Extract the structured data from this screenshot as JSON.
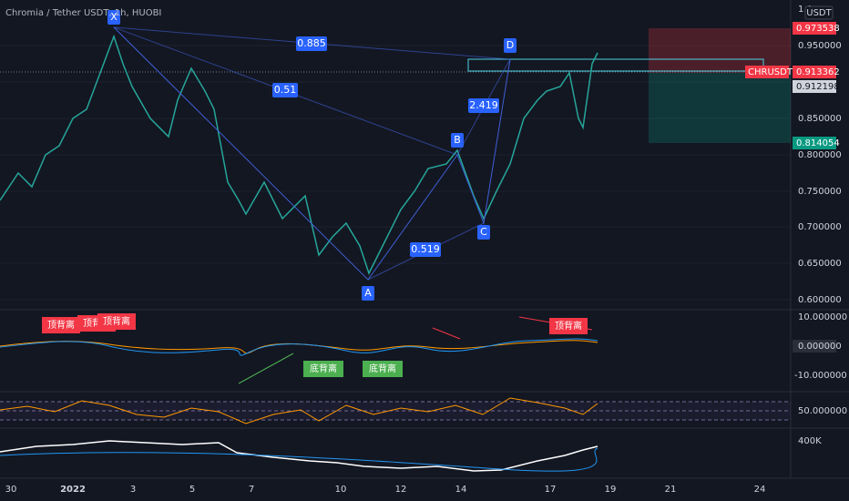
{
  "header": {
    "title": "Chromia / Tether USDT, 1h, HUOBI"
  },
  "price_axis": {
    "currency": "USDT",
    "top_label": "1.0",
    "ticks": [
      "0.950000",
      "0.850000",
      "0.800000",
      "0.750000",
      "0.700000",
      "0.650000",
      "0.600000"
    ]
  },
  "markers": {
    "stop_price": "0.973538",
    "symbol": "CHRUSDT",
    "last_price": "0.913362",
    "prev_close": "0.912198",
    "target_price": "0.814054"
  },
  "pattern": {
    "points": [
      "X",
      "A",
      "B",
      "C",
      "D"
    ],
    "ratios": [
      "0.885",
      "0.51",
      "2.419",
      "0.519"
    ]
  },
  "macd": {
    "ticks": [
      "10.000000",
      "0.000000",
      "-10.000000"
    ],
    "top_signals": [
      "顶背离",
      "顶背离",
      "顶背离",
      "顶背离"
    ],
    "bottom_signals": [
      "底背离",
      "底背离"
    ]
  },
  "rsi": {
    "ticks": [
      "50.000000"
    ]
  },
  "volume": {
    "ticks": [
      "400K"
    ]
  },
  "time_axis": {
    "labels": [
      "30",
      "2022",
      "3",
      "5",
      "7",
      "10",
      "12",
      "14",
      "17",
      "19",
      "21",
      "24"
    ]
  }
}
